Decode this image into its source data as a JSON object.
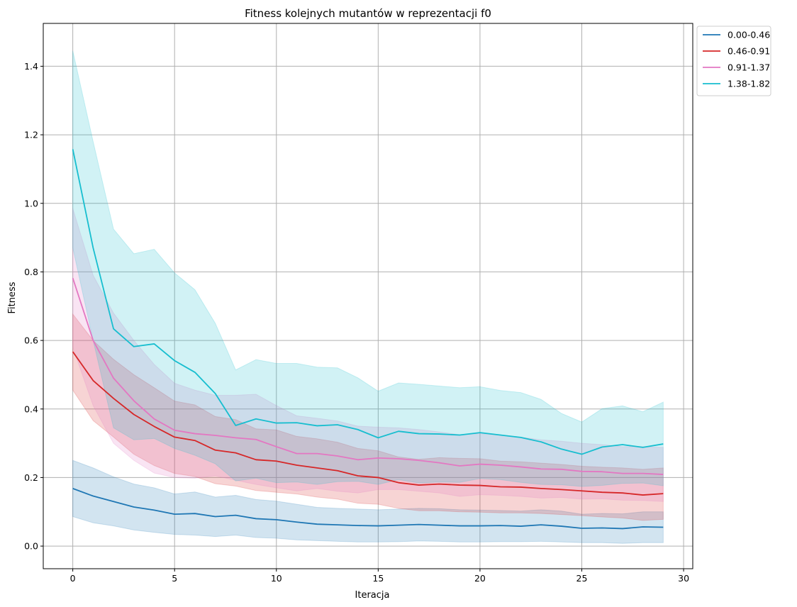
{
  "chart_data": {
    "type": "line",
    "title": "Fitness kolejnych mutantów w reprezentacji f0",
    "xlabel": "Iteracja",
    "ylabel": "Fitness",
    "xlim": [
      -1.45,
      30.45
    ],
    "ylim": [
      -0.066,
      1.525
    ],
    "xticks": [
      0,
      5,
      10,
      15,
      20,
      25,
      30
    ],
    "yticks": [
      0.0,
      0.2,
      0.4,
      0.6,
      0.8,
      1.0,
      1.2,
      1.4
    ],
    "xtick_labels": [
      "0",
      "5",
      "10",
      "15",
      "20",
      "25",
      "30"
    ],
    "ytick_labels": [
      "0.0",
      "0.2",
      "0.4",
      "0.6",
      "0.8",
      "1.0",
      "1.2",
      "1.4"
    ],
    "grid": true,
    "legend_position": "outside-top-right",
    "x": [
      0,
      1,
      2,
      3,
      4,
      5,
      6,
      7,
      8,
      9,
      10,
      11,
      12,
      13,
      14,
      15,
      16,
      17,
      18,
      19,
      20,
      21,
      22,
      23,
      24,
      25,
      26,
      27,
      28,
      29
    ],
    "series": [
      {
        "name": "0.00-0.46",
        "color": "#1f77b4",
        "values": [
          0.168,
          0.146,
          0.13,
          0.114,
          0.105,
          0.093,
          0.095,
          0.086,
          0.09,
          0.08,
          0.077,
          0.07,
          0.064,
          0.062,
          0.06,
          0.059,
          0.061,
          0.063,
          0.061,
          0.059,
          0.059,
          0.06,
          0.058,
          0.062,
          0.058,
          0.052,
          0.053,
          0.051,
          0.056,
          0.055
        ],
        "upper": [
          0.25,
          0.228,
          0.202,
          0.181,
          0.17,
          0.152,
          0.158,
          0.143,
          0.148,
          0.136,
          0.131,
          0.122,
          0.113,
          0.11,
          0.108,
          0.106,
          0.108,
          0.11,
          0.109,
          0.106,
          0.105,
          0.104,
          0.102,
          0.106,
          0.102,
          0.093,
          0.095,
          0.094,
          0.1,
          0.1
        ],
        "lower": [
          0.086,
          0.068,
          0.059,
          0.047,
          0.04,
          0.034,
          0.032,
          0.028,
          0.032,
          0.025,
          0.023,
          0.018,
          0.016,
          0.014,
          0.012,
          0.012,
          0.013,
          0.015,
          0.014,
          0.012,
          0.012,
          0.013,
          0.013,
          0.014,
          0.012,
          0.01,
          0.01,
          0.008,
          0.01,
          0.01
        ]
      },
      {
        "name": "0.46-0.91",
        "color": "#d62728",
        "values": [
          0.567,
          0.483,
          0.431,
          0.384,
          0.349,
          0.318,
          0.308,
          0.28,
          0.272,
          0.252,
          0.248,
          0.236,
          0.228,
          0.22,
          0.205,
          0.2,
          0.185,
          0.178,
          0.181,
          0.178,
          0.177,
          0.173,
          0.172,
          0.168,
          0.165,
          0.161,
          0.157,
          0.155,
          0.149,
          0.153
        ],
        "upper": [
          0.677,
          0.6,
          0.545,
          0.5,
          0.462,
          0.423,
          0.412,
          0.378,
          0.369,
          0.342,
          0.339,
          0.32,
          0.313,
          0.303,
          0.285,
          0.278,
          0.26,
          0.253,
          0.258,
          0.256,
          0.255,
          0.248,
          0.246,
          0.242,
          0.238,
          0.233,
          0.23,
          0.228,
          0.224,
          0.228
        ],
        "lower": [
          0.455,
          0.366,
          0.318,
          0.268,
          0.235,
          0.212,
          0.203,
          0.182,
          0.175,
          0.162,
          0.157,
          0.152,
          0.143,
          0.137,
          0.125,
          0.122,
          0.11,
          0.103,
          0.103,
          0.1,
          0.099,
          0.097,
          0.097,
          0.095,
          0.092,
          0.089,
          0.085,
          0.082,
          0.075,
          0.078
        ]
      },
      {
        "name": "0.91-1.37",
        "color": "#e377c2",
        "values": [
          0.782,
          0.6,
          0.49,
          0.424,
          0.371,
          0.338,
          0.328,
          0.323,
          0.316,
          0.311,
          0.29,
          0.27,
          0.27,
          0.263,
          0.252,
          0.257,
          0.255,
          0.25,
          0.243,
          0.234,
          0.239,
          0.236,
          0.231,
          0.225,
          0.224,
          0.218,
          0.217,
          0.212,
          0.212,
          0.209
        ],
        "upper": [
          0.985,
          0.79,
          0.68,
          0.6,
          0.53,
          0.475,
          0.455,
          0.44,
          0.44,
          0.443,
          0.41,
          0.38,
          0.373,
          0.365,
          0.35,
          0.347,
          0.345,
          0.34,
          0.333,
          0.325,
          0.328,
          0.324,
          0.318,
          0.31,
          0.306,
          0.3,
          0.296,
          0.29,
          0.29,
          0.288
        ],
        "lower": [
          0.58,
          0.41,
          0.3,
          0.25,
          0.213,
          0.2,
          0.198,
          0.205,
          0.192,
          0.18,
          0.17,
          0.161,
          0.168,
          0.16,
          0.155,
          0.165,
          0.165,
          0.16,
          0.155,
          0.145,
          0.15,
          0.148,
          0.145,
          0.14,
          0.142,
          0.137,
          0.138,
          0.134,
          0.133,
          0.13
        ]
      },
      {
        "name": "1.38-1.82",
        "color": "#17becf",
        "values": [
          1.158,
          0.87,
          0.634,
          0.582,
          0.59,
          0.541,
          0.507,
          0.445,
          0.352,
          0.371,
          0.359,
          0.36,
          0.351,
          0.354,
          0.34,
          0.316,
          0.335,
          0.328,
          0.327,
          0.324,
          0.331,
          0.324,
          0.317,
          0.304,
          0.283,
          0.268,
          0.289,
          0.296,
          0.288,
          0.298
        ],
        "upper": [
          1.445,
          1.18,
          0.925,
          0.853,
          0.866,
          0.797,
          0.748,
          0.65,
          0.514,
          0.544,
          0.533,
          0.533,
          0.522,
          0.52,
          0.491,
          0.452,
          0.476,
          0.472,
          0.467,
          0.462,
          0.465,
          0.454,
          0.448,
          0.428,
          0.387,
          0.362,
          0.401,
          0.409,
          0.392,
          0.42
        ],
        "lower": [
          0.87,
          0.6,
          0.345,
          0.31,
          0.314,
          0.285,
          0.265,
          0.24,
          0.19,
          0.198,
          0.185,
          0.187,
          0.18,
          0.188,
          0.189,
          0.18,
          0.194,
          0.184,
          0.187,
          0.186,
          0.197,
          0.194,
          0.186,
          0.18,
          0.179,
          0.174,
          0.177,
          0.183,
          0.184,
          0.176
        ]
      }
    ]
  }
}
